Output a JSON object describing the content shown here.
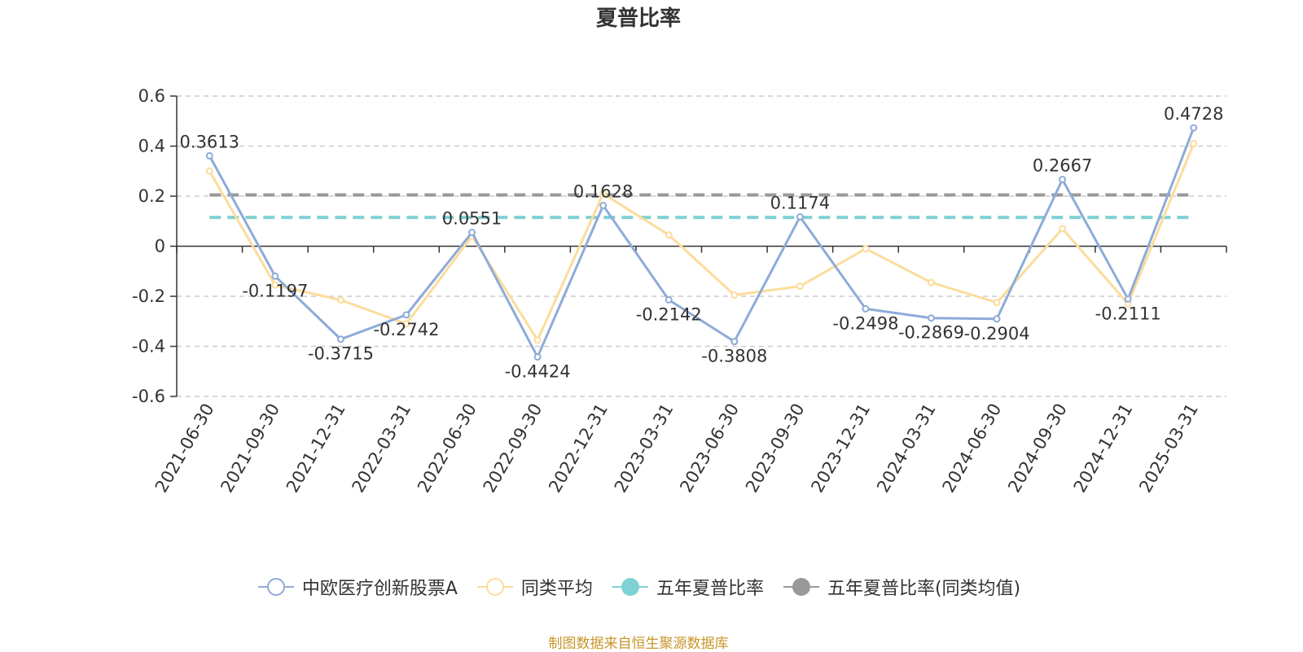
{
  "chart_data": {
    "type": "line",
    "title": "夏普比率",
    "categories": [
      "2021-06-30",
      "2021-09-30",
      "2021-12-31",
      "2022-03-31",
      "2022-06-30",
      "2022-09-30",
      "2022-12-31",
      "2023-03-31",
      "2023-06-30",
      "2023-09-30",
      "2023-12-31",
      "2024-03-31",
      "2024-06-30",
      "2024-09-30",
      "2024-12-31",
      "2025-03-31"
    ],
    "ylim": [
      -0.6,
      0.6
    ],
    "yticks": [
      "0.6",
      "0.4",
      "0.2",
      "0",
      "-0.2",
      "-0.4",
      "-0.6"
    ],
    "ytick_values": [
      0.6,
      0.4,
      0.2,
      0,
      -0.2,
      -0.4,
      -0.6
    ],
    "grid": true,
    "legend_position": "bottom",
    "series": [
      {
        "name": "中欧医疗创新股票A",
        "color": "#8eabd8",
        "marker": "hollow-circle",
        "values": [
          0.3613,
          -0.1197,
          -0.3715,
          -0.2742,
          0.0551,
          -0.4424,
          0.1628,
          -0.2142,
          -0.3808,
          0.1174,
          -0.2498,
          -0.2869,
          -0.2904,
          0.2667,
          -0.2111,
          0.4728
        ],
        "labels": [
          "0.3613",
          "-0.1197",
          "-0.3715",
          "-0.2742",
          "0.0551",
          "-0.4424",
          "0.1628",
          "-0.2142",
          "-0.3808",
          "0.1174",
          "-0.2498",
          "-0.2869",
          "-0.2904",
          "0.2667",
          "-0.2111",
          "0.4728"
        ]
      },
      {
        "name": "同类平均",
        "color": "#fcdc9c",
        "marker": "hollow-circle",
        "values": [
          0.3,
          -0.155,
          -0.215,
          -0.31,
          0.04,
          -0.375,
          0.21,
          0.045,
          -0.195,
          -0.16,
          -0.01,
          -0.145,
          -0.225,
          0.07,
          -0.23,
          0.41
        ]
      }
    ],
    "reference_lines": [
      {
        "name": "五年夏普比率",
        "color": "#7fd1d4",
        "value": 0.115,
        "style": "dashed"
      },
      {
        "name": "五年夏普比率(同类均值)",
        "color": "#999999",
        "value": 0.205,
        "style": "dashed"
      }
    ]
  },
  "legend": [
    {
      "label": "中欧医疗创新股票A",
      "color": "#8eabd8",
      "kind": "hollow"
    },
    {
      "label": "同类平均",
      "color": "#fcdc9c",
      "kind": "hollow"
    },
    {
      "label": "五年夏普比率",
      "color": "#7fd1d4",
      "kind": "filled"
    },
    {
      "label": "五年夏普比率(同类均值)",
      "color": "#999999",
      "kind": "filled"
    }
  ],
  "source": "制图数据来自恒生聚源数据库"
}
